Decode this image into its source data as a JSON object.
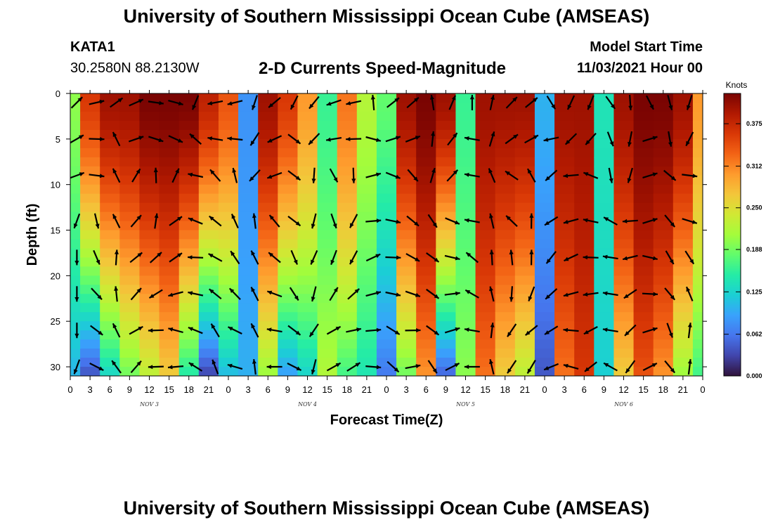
{
  "header": {
    "title": "University of Southern Mississippi Ocean Cube (AMSEAS)",
    "station_id": "KATA1",
    "coordinates": "30.2580N  88.2130W",
    "subtitle": "2-D Currents Speed-Magnitude",
    "model_start_label": "Model Start Time",
    "model_start_value": "11/03/2021 Hour 00"
  },
  "footer": {
    "title": "University of Southern Mississippi Ocean Cube (AMSEAS)"
  },
  "chart_data": {
    "type": "heatmap",
    "title": "2-D Currents Speed-Magnitude",
    "xlabel": "Forecast Time(Z)",
    "ylabel": "Depth (ft)",
    "x_range_hours": [
      0,
      96
    ],
    "ylim": [
      0,
      31
    ],
    "y_inverted": true,
    "x_ticks": [
      "0",
      "3",
      "6",
      "9",
      "12",
      "15",
      "18",
      "21",
      "0",
      "3",
      "6",
      "9",
      "12",
      "15",
      "18",
      "21",
      "0",
      "3",
      "6",
      "9",
      "12",
      "15",
      "18",
      "21",
      "0",
      "3",
      "6",
      "9",
      "12",
      "15",
      "18",
      "21",
      "0"
    ],
    "y_ticks": [
      "0",
      "5",
      "10",
      "15",
      "20",
      "25",
      "30"
    ],
    "y_tick_values": [
      0,
      5,
      10,
      15,
      20,
      25,
      30
    ],
    "day_labels": [
      {
        "label": "NOV 3",
        "hour": 12
      },
      {
        "label": "NOV 4",
        "hour": 36
      },
      {
        "label": "NOV 5",
        "hour": 60
      },
      {
        "label": "NOV 6",
        "hour": 84
      }
    ],
    "colorbar": {
      "units": "Knots",
      "min": 0.0,
      "max": 0.42,
      "tick_labels": [
        "0.000",
        "0.062",
        "0.125",
        "0.188",
        "0.250",
        "0.312",
        "0.375"
      ],
      "tick_values": [
        0.0,
        0.062,
        0.125,
        0.188,
        0.25,
        0.312,
        0.375
      ],
      "colormap": [
        "#30123b",
        "#4145ab",
        "#4675ed",
        "#39a2fc",
        "#1bcfd4",
        "#24eca6",
        "#61fc6c",
        "#a4fc3b",
        "#d1e834",
        "#f3c63a",
        "#fe9b2d",
        "#f36315",
        "#d93806",
        "#b11901",
        "#7a0402"
      ]
    },
    "depth_profile_ft": [
      0,
      1,
      2,
      3,
      4,
      5,
      6,
      7,
      8,
      9,
      10,
      11,
      12,
      13,
      14,
      15,
      16,
      17,
      18,
      19,
      20,
      21,
      22,
      23,
      24,
      25,
      26,
      27,
      28,
      29,
      30,
      31
    ],
    "speed_column_profiles_knots": [
      {
        "hour": 0,
        "surface": 0.2,
        "bottom": 0.1
      },
      {
        "hour": 3,
        "surface": 0.36,
        "bottom": 0.03
      },
      {
        "hour": 6,
        "surface": 0.4,
        "bottom": 0.12
      },
      {
        "hour": 9,
        "surface": 0.4,
        "bottom": 0.18
      },
      {
        "hour": 12,
        "surface": 0.42,
        "bottom": 0.22
      },
      {
        "hour": 15,
        "surface": 0.42,
        "bottom": 0.26
      },
      {
        "hour": 18,
        "surface": 0.42,
        "bottom": 0.14
      },
      {
        "hour": 21,
        "surface": 0.38,
        "bottom": 0.02
      },
      {
        "hour": 24,
        "surface": 0.34,
        "bottom": 0.1
      },
      {
        "hour": 27,
        "surface": 0.08,
        "bottom": 0.1
      },
      {
        "hour": 30,
        "surface": 0.4,
        "bottom": 0.2
      },
      {
        "hour": 33,
        "surface": 0.36,
        "bottom": 0.08
      },
      {
        "hour": 36,
        "surface": 0.3,
        "bottom": 0.12
      },
      {
        "hour": 39,
        "surface": 0.16,
        "bottom": 0.22
      },
      {
        "hour": 42,
        "surface": 0.32,
        "bottom": 0.16
      },
      {
        "hour": 45,
        "surface": 0.22,
        "bottom": 0.14
      },
      {
        "hour": 48,
        "surface": 0.18,
        "bottom": 0.06
      },
      {
        "hour": 51,
        "surface": 0.4,
        "bottom": 0.18
      },
      {
        "hour": 54,
        "surface": 0.42,
        "bottom": 0.3
      },
      {
        "hour": 57,
        "surface": 0.4,
        "bottom": 0.04
      },
      {
        "hour": 60,
        "surface": 0.16,
        "bottom": 0.2
      },
      {
        "hour": 63,
        "surface": 0.4,
        "bottom": 0.32
      },
      {
        "hour": 66,
        "surface": 0.4,
        "bottom": 0.26
      },
      {
        "hour": 69,
        "surface": 0.4,
        "bottom": 0.22
      },
      {
        "hour": 72,
        "surface": 0.1,
        "bottom": 0.04
      },
      {
        "hour": 75,
        "surface": 0.4,
        "bottom": 0.32
      },
      {
        "hour": 78,
        "surface": 0.4,
        "bottom": 0.36
      },
      {
        "hour": 81,
        "surface": 0.14,
        "bottom": 0.12
      },
      {
        "hour": 84,
        "surface": 0.4,
        "bottom": 0.26
      },
      {
        "hour": 87,
        "surface": 0.42,
        "bottom": 0.34
      },
      {
        "hour": 90,
        "surface": 0.42,
        "bottom": 0.3
      },
      {
        "hour": 93,
        "surface": 0.4,
        "bottom": 0.2
      },
      {
        "hour": 96,
        "surface": 0.3,
        "bottom": 0.16
      }
    ],
    "vector_depths_ft": [
      1,
      5,
      9,
      14,
      18,
      22,
      26,
      30
    ],
    "vector_direction_deg_by_column": [
      [
        45,
        60,
        70,
        200,
        180,
        180,
        180,
        200
      ],
      [
        60,
        75,
        80,
        150,
        140,
        120,
        110,
        100
      ],
      [
        20,
        300,
        300,
        300,
        330,
        320,
        300,
        290
      ],
      [
        15,
        20,
        340,
        350,
        0,
        350,
        10,
        350
      ],
      [
        30,
        40,
        290,
        300,
        340,
        170,
        200,
        200
      ],
      [
        20,
        30,
        300,
        330,
        330,
        170,
        200,
        180
      ],
      [
        100,
        210,
        180,
        190,
        170,
        180,
        190,
        200
      ],
      [
        140,
        160,
        200,
        190,
        180,
        190,
        210,
        220
      ],
      [
        120,
        140,
        210,
        200,
        190,
        180,
        160,
        150
      ]
    ]
  }
}
